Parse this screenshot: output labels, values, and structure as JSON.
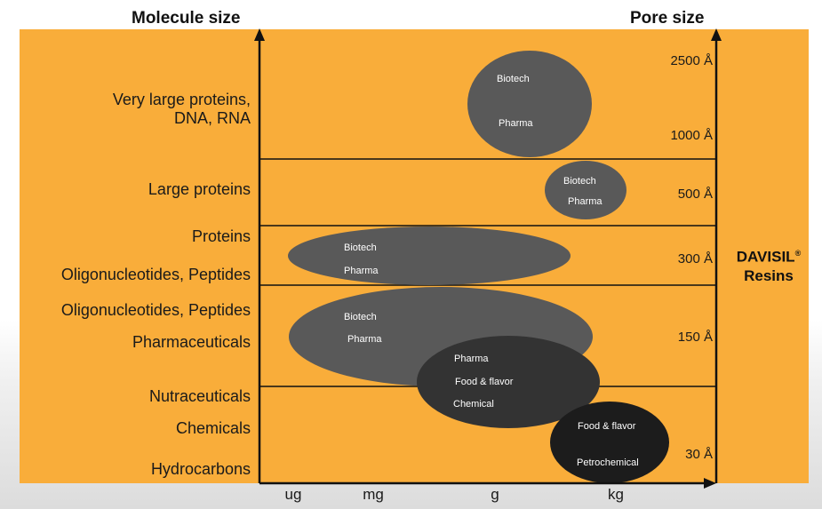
{
  "headers": {
    "molecule_size": "Molecule size",
    "pore_size": "Pore size"
  },
  "molecule_labels": [
    "Very large proteins,\nDNA, RNA",
    "Large proteins",
    "Proteins",
    "Oligonucleotides, Peptides",
    "Oligonucleotides, Peptides",
    "Pharmaceuticals",
    "Nutraceuticals",
    "Chemicals",
    "Hydrocarbons"
  ],
  "pore_labels": [
    "2500 Å",
    "1000 Å",
    "500 Å",
    "300 Å",
    "150 Å",
    "30 Å"
  ],
  "x_ticks": [
    "ug",
    "mg",
    "g",
    "kg"
  ],
  "brand": {
    "name": "DAVISIL",
    "reg": "®",
    "line2": "Resins"
  },
  "ellipses": [
    {
      "labels": [
        "Biotech",
        "Pharma"
      ]
    },
    {
      "labels": [
        "Biotech",
        "Pharma"
      ]
    },
    {
      "labels": [
        "Biotech",
        "Pharma"
      ]
    },
    {
      "labels": [
        "Biotech",
        "Pharma"
      ]
    },
    {
      "labels": [
        "Pharma",
        "Food & flavor",
        "Chemical"
      ]
    },
    {
      "labels": [
        "Food & flavor",
        "Petrochemical"
      ]
    }
  ],
  "colors": {
    "panel": "#f9ad3a",
    "ellipse_grey": "#595959",
    "ellipse_dark": "#333333",
    "ellipse_black": "#1c1c1c"
  }
}
